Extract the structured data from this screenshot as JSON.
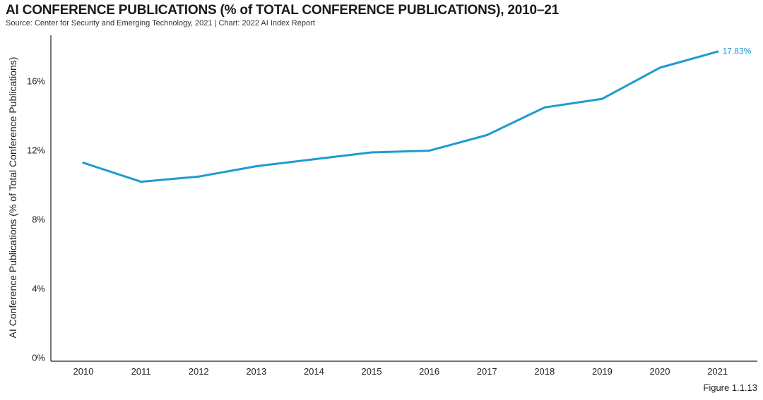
{
  "header": {
    "title": "AI CONFERENCE PUBLICATIONS (% of TOTAL CONFERENCE PUBLICATIONS), 2010–21",
    "source": "Source: Center for Security and Emerging Technology, 2021 | Chart: 2022 AI Index Report"
  },
  "footer": {
    "figure_label": "Figure 1.1.13"
  },
  "colors": {
    "line": "#1e9bd0",
    "axis": "#222222"
  },
  "chart_data": {
    "type": "line",
    "title": "AI CONFERENCE PUBLICATIONS (% of TOTAL CONFERENCE PUBLICATIONS), 2010–21",
    "xlabel": "",
    "ylabel": "AI Conference Publications (% of Total Conference Publications)",
    "x": [
      2010,
      2011,
      2012,
      2013,
      2014,
      2015,
      2016,
      2017,
      2018,
      2019,
      2020,
      2021
    ],
    "series": [
      {
        "values": [
          11.4,
          10.3,
          10.6,
          11.2,
          11.6,
          12.0,
          12.1,
          13.0,
          14.6,
          15.1,
          16.9,
          17.83
        ]
      }
    ],
    "ylim": [
      0,
      18.8
    ],
    "yticks": [
      0,
      4,
      8,
      12,
      16
    ],
    "ytick_labels": [
      "0%",
      "4%",
      "8%",
      "12%",
      "16%"
    ],
    "xtick_labels": [
      "2010",
      "2011",
      "2012",
      "2013",
      "2014",
      "2015",
      "2016",
      "2017",
      "2018",
      "2019",
      "2020",
      "2021"
    ],
    "end_label": "17.83%",
    "grid": false,
    "legend": "none"
  }
}
